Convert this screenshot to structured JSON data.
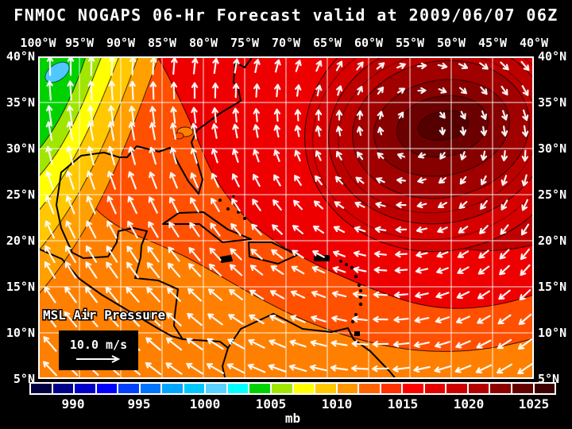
{
  "title": "FNMOC NOGAPS 06-Hr Forecast valid at 2009/06/07 06Z",
  "axes": {
    "lon": [
      "100°W",
      "95°W",
      "90°W",
      "85°W",
      "80°W",
      "75°W",
      "70°W",
      "65°W",
      "60°W",
      "55°W",
      "50°W",
      "45°W",
      "40°W"
    ],
    "lat": [
      "40°N",
      "35°N",
      "30°N",
      "25°N",
      "20°N",
      "15°N",
      "10°N",
      "5°N"
    ]
  },
  "overlays": {
    "field_label": "MSL Air Pressure",
    "wind_legend": "10.0 m/s"
  },
  "colorbar": {
    "unit": "mb",
    "ticks": [
      "990",
      "995",
      "1000",
      "1005",
      "1010",
      "1015",
      "1020",
      "1025"
    ],
    "segments": [
      "#000041",
      "#00008B",
      "#0000C8",
      "#0000FF",
      "#0041FF",
      "#0073FF",
      "#00A5FF",
      "#00C8FF",
      "#5AD2FF",
      "#00FFFF",
      "#00D200",
      "#A0E600",
      "#FFFF00",
      "#FFC800",
      "#FF9600",
      "#FF6400",
      "#FF3200",
      "#FF0000",
      "#E60000",
      "#CD0000",
      "#B40000",
      "#8C0000",
      "#640000",
      "#3C0000"
    ]
  },
  "map": {
    "base_color": "#FF8000",
    "band_colors": [
      "#FF5000",
      "#EE0000",
      "#D60000",
      "#BC0000",
      "#A00000",
      "#860000",
      "#6A0000",
      "#540000",
      "#BE0000"
    ],
    "corner_colors": [
      "#FFA000",
      "#FFC800",
      "#FFFF00",
      "#A0E600",
      "#00D200",
      "#50C8FF"
    ],
    "grid_color": "#FFFFFF",
    "coast_color": "#000000",
    "arrow_color": "#FFFFFF"
  },
  "colors": {
    "page_background": "#000000",
    "text": "#FFFFFF"
  }
}
